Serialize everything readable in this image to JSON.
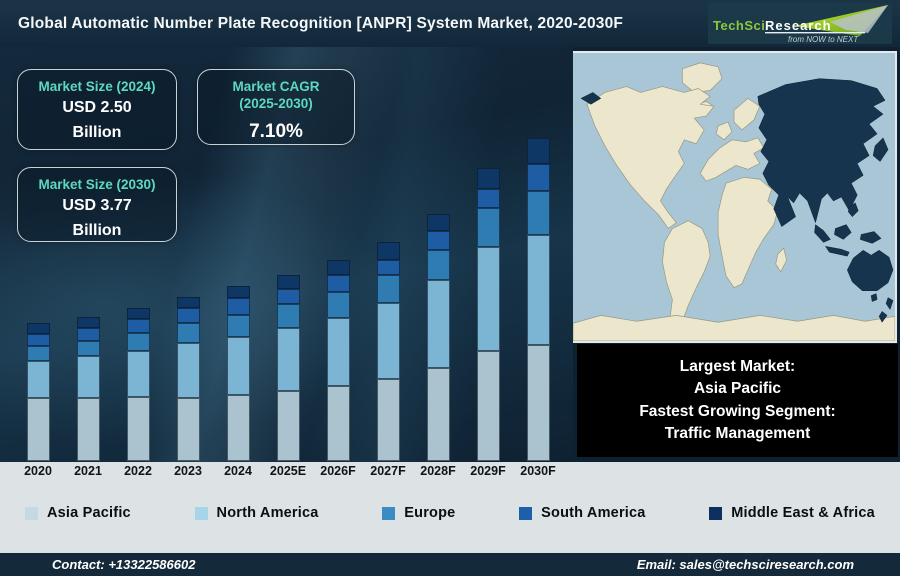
{
  "header": {
    "title": "Global Automatic Number Plate Recognition [ANPR] System Market, 2020-2030F",
    "logo": {
      "brand_green": "TechSci",
      "brand_white": "Research",
      "tagline": "from NOW to NEXT"
    }
  },
  "info_boxes": {
    "size_2024": {
      "label": "Market Size (2024)",
      "value_line1": "USD 2.50",
      "value_line2": "Billion"
    },
    "cagr": {
      "label_line1": "Market CAGR",
      "label_line2": "(2025-2030)",
      "value": "7.10%"
    },
    "size_2030": {
      "label": "Market Size (2030)",
      "value_line1": "USD 3.77",
      "value_line2": "Billion"
    }
  },
  "highlight_box": {
    "line1": "Largest Market:",
    "line2": "Asia Pacific",
    "line3": "Fastest Growing Segment:",
    "line4": "Traffic Management"
  },
  "footer": {
    "contact": "Contact: +13322586602",
    "email": "Email: sales@techsciresearch.com"
  },
  "colors": {
    "accent_teal": "#5ed8c0",
    "title_bar": "#163040",
    "footer_bar": "#14293a",
    "map_ocean": "#a9c6d7",
    "map_land": "#ece6cd",
    "map_highlight": "#17344e"
  },
  "chart_data": {
    "type": "bar",
    "stacked": true,
    "title": "Global Automatic Number Plate Recognition [ANPR] System Market, 2020-2030F",
    "categories": [
      "2020",
      "2021",
      "2022",
      "2023",
      "2024",
      "2025E",
      "2026F",
      "2027F",
      "2028F",
      "2029F",
      "2030F"
    ],
    "value_units": "relative bar-segment heights in pixels as drawn (chart shows no y-axis)",
    "series": [
      {
        "name": "Asia Pacific",
        "color": "#aac3cf",
        "legend_color": "#c3d9e3",
        "values": [
          63,
          63,
          64,
          63,
          66,
          70,
          75,
          82,
          93,
          110,
          116
        ]
      },
      {
        "name": "North America",
        "color": "#7cb5d3",
        "legend_color": "#a6d4e9",
        "values": [
          37,
          42,
          46,
          55,
          58,
          63,
          68,
          76,
          88,
          104,
          110
        ]
      },
      {
        "name": "Europe",
        "color": "#2f7cb3",
        "legend_color": "#3a8cc3",
        "values": [
          15,
          15,
          18,
          20,
          22,
          24,
          26,
          28,
          30,
          39,
          44
        ]
      },
      {
        "name": "South America",
        "color": "#1e5da4",
        "legend_color": "#1d5fa8",
        "values": [
          12,
          13,
          14,
          15,
          17,
          15,
          17,
          15,
          19,
          19,
          27
        ]
      },
      {
        "name": "Middle East & Africa",
        "color": "#0f3765",
        "legend_color": "#0d3060",
        "values": [
          11,
          11,
          11,
          11,
          12,
          14,
          15,
          18,
          17,
          21,
          26
        ]
      }
    ],
    "annotations": {
      "market_size_2024": "USD 2.50 Billion",
      "market_cagr_2025_2030": "7.10%",
      "market_size_2030": "USD 3.77 Billion",
      "largest_market": "Asia Pacific",
      "fastest_growing_segment": "Traffic Management"
    },
    "legend_position": "bottom",
    "x_axis_labels_shown": true,
    "y_axis_shown": false
  }
}
